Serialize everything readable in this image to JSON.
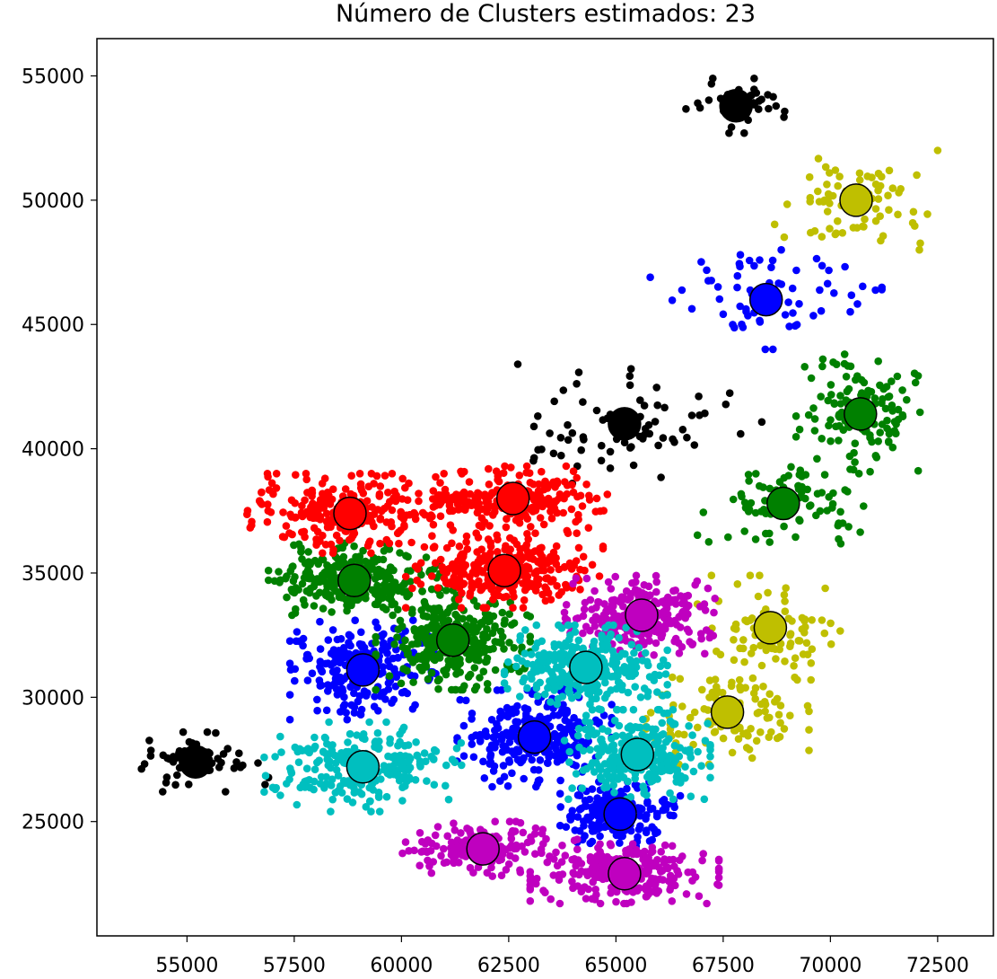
{
  "chart_data": {
    "type": "scatter",
    "title": "Número de Clusters estimados: 23",
    "xlabel": "",
    "ylabel": "",
    "xlim": [
      52900,
      73800
    ],
    "ylim": [
      20400,
      56500
    ],
    "x_ticks": [
      55000,
      57500,
      60000,
      62500,
      65000,
      67500,
      70000,
      72500
    ],
    "x_tick_labels": [
      "55000",
      "57500",
      "60000",
      "62500",
      "65000",
      "67500",
      "70000",
      "72500"
    ],
    "y_ticks": [
      25000,
      30000,
      35000,
      40000,
      45000,
      50000,
      55000
    ],
    "y_tick_labels": [
      "25000",
      "30000",
      "35000",
      "40000",
      "45000",
      "50000",
      "55000"
    ],
    "grid": false,
    "legend": "none",
    "colors": {
      "black": "#000000",
      "red": "#ff0000",
      "green": "#008000",
      "blue": "#0000ff",
      "cyan": "#00bfbf",
      "magenta": "#bf00bf",
      "yellow": "#bfbf00"
    },
    "clusters": [
      {
        "color": "black",
        "center": [
          67800,
          53800
        ],
        "extent": [
          1600,
          1100
        ],
        "points": 35
      },
      {
        "color": "black",
        "center": [
          65200,
          41000
        ],
        "extent": [
          3200,
          2400
        ],
        "points": 75
      },
      {
        "color": "black",
        "center": [
          55200,
          27400
        ],
        "extent": [
          1700,
          1200
        ],
        "points": 60
      },
      {
        "color": "yellow",
        "center": [
          70600,
          50000
        ],
        "extent": [
          1900,
          2000
        ],
        "points": 80
      },
      {
        "color": "yellow",
        "center": [
          68600,
          32800
        ],
        "extent": [
          1700,
          2100
        ],
        "points": 90
      },
      {
        "color": "yellow",
        "center": [
          67600,
          29400
        ],
        "extent": [
          1900,
          2100
        ],
        "points": 110
      },
      {
        "color": "blue",
        "center": [
          68500,
          46000
        ],
        "extent": [
          2700,
          2000
        ],
        "points": 70
      },
      {
        "color": "blue",
        "center": [
          59100,
          31100
        ],
        "extent": [
          1700,
          2000
        ],
        "points": 220
      },
      {
        "color": "blue",
        "center": [
          63100,
          28400
        ],
        "extent": [
          1800,
          2000
        ],
        "points": 260
      },
      {
        "color": "blue",
        "center": [
          65100,
          25300
        ],
        "extent": [
          1400,
          1300
        ],
        "points": 200
      },
      {
        "color": "green",
        "center": [
          70700,
          41400
        ],
        "extent": [
          1500,
          2400
        ],
        "points": 130
      },
      {
        "color": "green",
        "center": [
          68900,
          37800
        ],
        "extent": [
          2000,
          1800
        ],
        "points": 80
      },
      {
        "color": "green",
        "center": [
          58900,
          34700
        ],
        "extent": [
          2000,
          1500
        ],
        "points": 260
      },
      {
        "color": "green",
        "center": [
          61200,
          32300
        ],
        "extent": [
          1800,
          2000
        ],
        "points": 300
      },
      {
        "color": "red",
        "center": [
          58800,
          37400
        ],
        "extent": [
          2400,
          1600
        ],
        "points": 240
      },
      {
        "color": "red",
        "center": [
          62600,
          38000
        ],
        "extent": [
          2200,
          1300
        ],
        "points": 220
      },
      {
        "color": "red",
        "center": [
          62400,
          35100
        ],
        "extent": [
          2300,
          1500
        ],
        "points": 300
      },
      {
        "color": "magenta",
        "center": [
          65600,
          33300
        ],
        "extent": [
          1800,
          1600
        ],
        "points": 260
      },
      {
        "color": "magenta",
        "center": [
          61900,
          23900
        ],
        "extent": [
          2200,
          1100
        ],
        "points": 150
      },
      {
        "color": "magenta",
        "center": [
          65200,
          22900
        ],
        "extent": [
          2200,
          1200
        ],
        "points": 240
      },
      {
        "color": "cyan",
        "center": [
          64300,
          31200
        ],
        "extent": [
          1900,
          1700
        ],
        "points": 300
      },
      {
        "color": "cyan",
        "center": [
          65500,
          27700
        ],
        "extent": [
          1700,
          1800
        ],
        "points": 260
      },
      {
        "color": "cyan",
        "center": [
          59100,
          27200
        ],
        "extent": [
          2300,
          1800
        ],
        "points": 240
      }
    ]
  }
}
